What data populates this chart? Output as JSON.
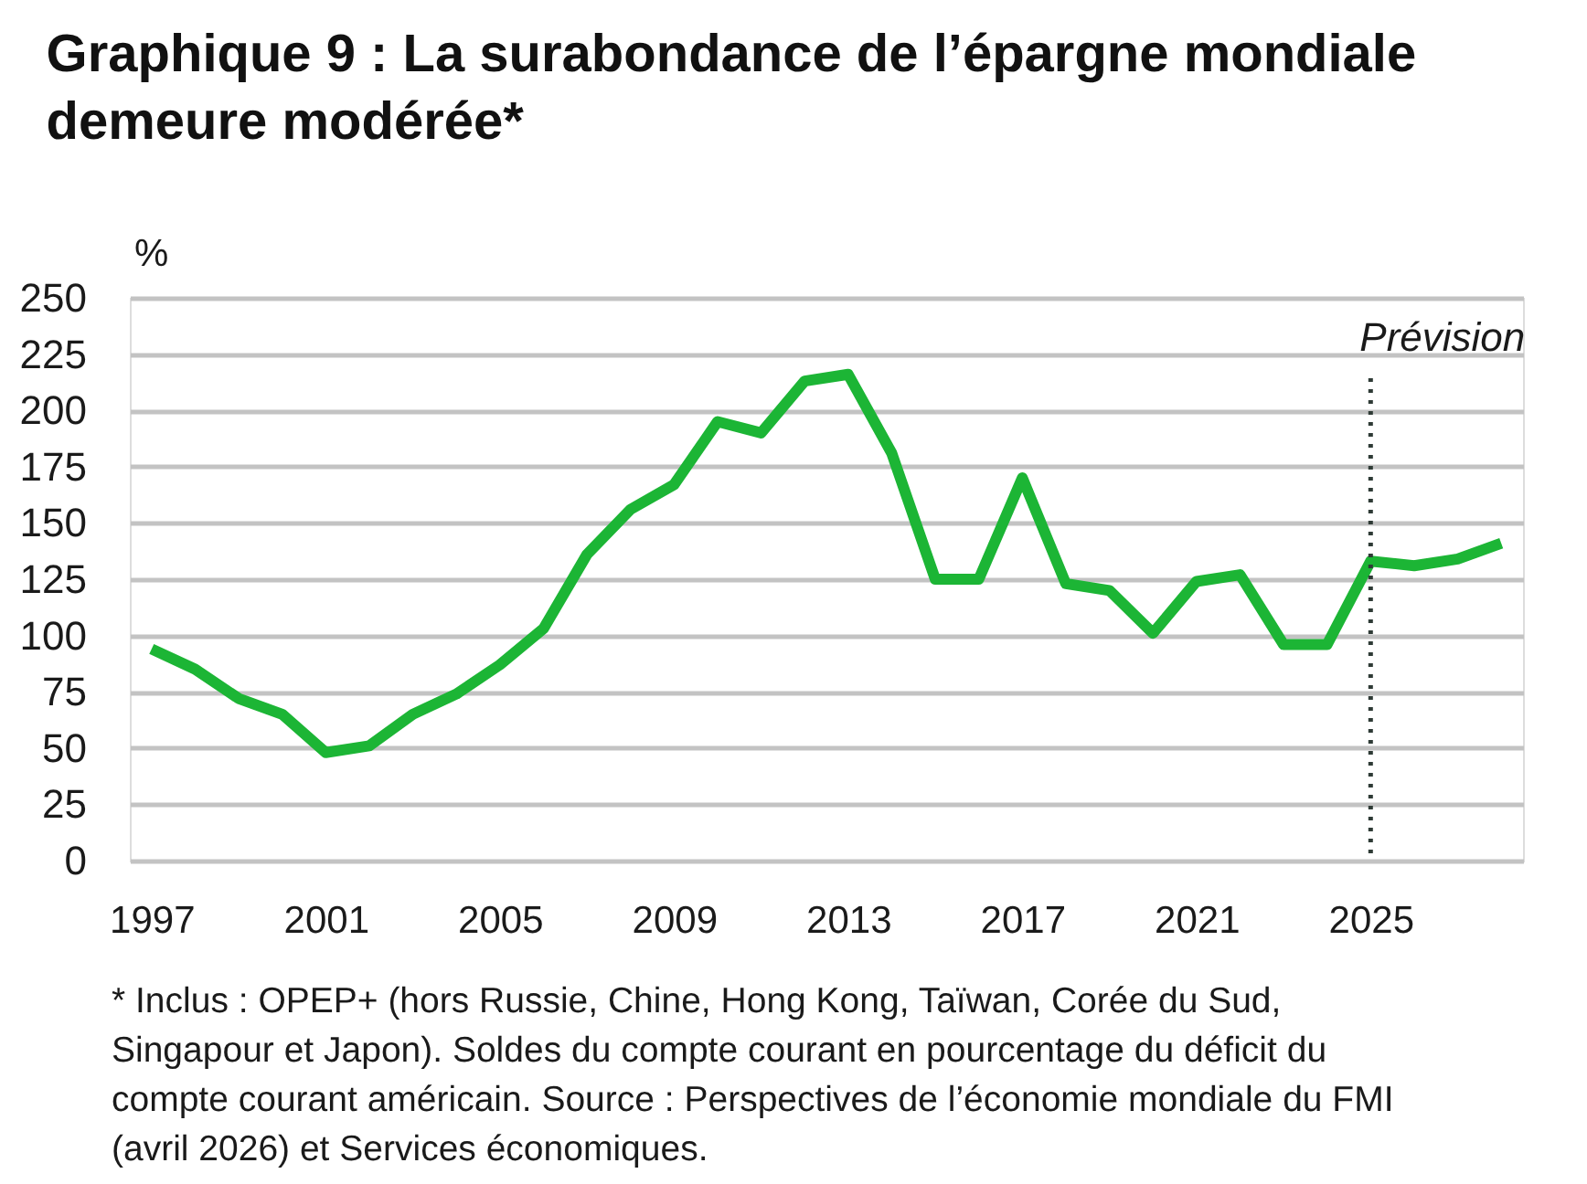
{
  "chart_data": {
    "type": "line",
    "title": "Graphique 9 : La surabondance de l’épargne mondiale demeure modérée*",
    "ylabel": "%",
    "x": [
      1997,
      1998,
      1999,
      2000,
      2001,
      2002,
      2003,
      2004,
      2005,
      2006,
      2007,
      2008,
      2009,
      2010,
      2011,
      2012,
      2013,
      2014,
      2015,
      2016,
      2017,
      2018,
      2019,
      2020,
      2021,
      2022,
      2023,
      2024,
      2025,
      2026,
      2027,
      2028
    ],
    "series": [
      {
        "color": "#1cb535",
        "values": [
          94,
          85,
          72,
          65,
          48,
          51,
          65,
          74,
          87,
          103,
          136,
          156,
          167,
          195,
          190,
          213,
          216,
          181,
          125,
          125,
          170,
          123,
          120,
          101,
          124,
          127,
          96,
          96,
          133,
          131,
          134,
          141
        ]
      }
    ],
    "xlim": [
      1996.5,
      2028.5
    ],
    "ylim": [
      0,
      250
    ],
    "xticks": [
      1997,
      2001,
      2005,
      2009,
      2013,
      2017,
      2021,
      2025
    ],
    "yticks": [
      0,
      25,
      50,
      75,
      100,
      125,
      150,
      175,
      200,
      225,
      250
    ],
    "grid": "y",
    "ref_lines": [
      {
        "axis": "x",
        "value": 2025,
        "label": "Prévision",
        "color": "#2f3b36",
        "line_style": "dotted"
      }
    ],
    "annotations": [
      "* Inclus : OPEP+ (hors Russie, Chine, Hong Kong, Taïwan, Corée du Sud, Singapour et Japon). Soldes du compte courant en pourcentage du déficit du compte courant américain. Source : Perspectives de l’économie mondiale du FMI (avril 2026) et Services économiques."
    ]
  }
}
